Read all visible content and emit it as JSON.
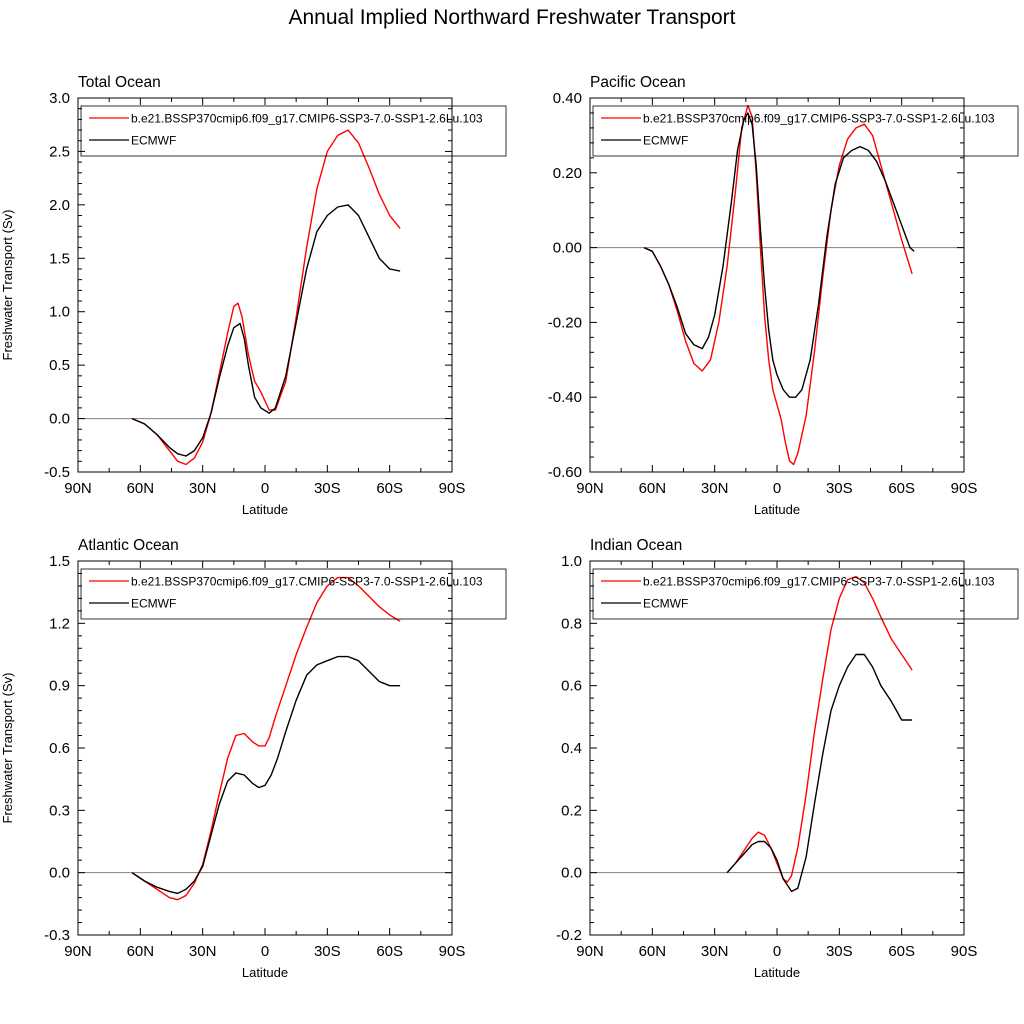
{
  "figure": {
    "title": "Annual Implied Northward Freshwater Transport"
  },
  "colors": {
    "model": "#ff0000",
    "obs": "#000000",
    "zero_line": "#808080"
  },
  "chart_data": [
    {
      "type": "line",
      "title": "Total Ocean",
      "xlabel": "Latitude",
      "ylabel": "Freshwater Transport (Sv)",
      "xlim": [
        -90,
        90
      ],
      "ylim": [
        -0.5,
        3.0
      ],
      "xticks": [
        -90,
        -60,
        -30,
        0,
        30,
        60,
        90
      ],
      "xtick_labels": [
        "90N",
        "60N",
        "30N",
        "0",
        "30S",
        "60S",
        "90S"
      ],
      "yticks": [
        -0.5,
        0.0,
        0.5,
        1.0,
        1.5,
        2.0,
        2.5,
        3.0
      ],
      "ytick_labels": [
        "-0.5",
        "0.0",
        "0.5",
        "1.0",
        "1.5",
        "2.0",
        "2.5",
        "3.0"
      ],
      "legend_position": "top",
      "series": [
        {
          "name": "b.e21.BSSP370cmip6.f09_g17.CMIP6-SSP3-7.0-SSP1-2.6Lu.103",
          "color": "#ff0000",
          "x": [
            -64,
            -58,
            -52,
            -46,
            -42,
            -38,
            -34,
            -30,
            -26,
            -22,
            -18,
            -15,
            -13,
            -11,
            -8,
            -5,
            -2,
            2,
            5,
            10,
            15,
            20,
            25,
            30,
            35,
            40,
            45,
            50,
            55,
            60,
            65
          ],
          "y": [
            0.0,
            -0.05,
            -0.15,
            -0.3,
            -0.4,
            -0.43,
            -0.37,
            -0.22,
            0.05,
            0.42,
            0.8,
            1.05,
            1.08,
            0.95,
            0.6,
            0.35,
            0.25,
            0.08,
            0.08,
            0.35,
            0.95,
            1.6,
            2.15,
            2.5,
            2.65,
            2.7,
            2.58,
            2.35,
            2.1,
            1.9,
            1.78
          ]
        },
        {
          "name": "ECMWF",
          "color": "#000000",
          "x": [
            -64,
            -58,
            -52,
            -46,
            -42,
            -38,
            -34,
            -30,
            -26,
            -22,
            -18,
            -15,
            -12,
            -10,
            -8,
            -5,
            -2,
            2,
            5,
            10,
            15,
            20,
            25,
            30,
            35,
            40,
            45,
            50,
            55,
            60,
            65
          ],
          "y": [
            0.0,
            -0.05,
            -0.15,
            -0.27,
            -0.33,
            -0.35,
            -0.3,
            -0.18,
            0.05,
            0.38,
            0.68,
            0.85,
            0.89,
            0.75,
            0.5,
            0.2,
            0.1,
            0.05,
            0.1,
            0.4,
            0.9,
            1.4,
            1.75,
            1.9,
            1.98,
            2.0,
            1.9,
            1.7,
            1.5,
            1.4,
            1.38
          ]
        }
      ]
    },
    {
      "type": "line",
      "title": "Pacific Ocean",
      "xlabel": "Latitude",
      "ylabel": "",
      "xlim": [
        -90,
        90
      ],
      "ylim": [
        -0.6,
        0.4
      ],
      "xticks": [
        -90,
        -60,
        -30,
        0,
        30,
        60,
        90
      ],
      "xtick_labels": [
        "90N",
        "60N",
        "30N",
        "0",
        "30S",
        "60S",
        "90S"
      ],
      "yticks": [
        -0.6,
        -0.4,
        -0.2,
        0.0,
        0.2,
        0.4
      ],
      "ytick_labels": [
        "-0.60",
        "-0.40",
        "-0.20",
        "0.00",
        "0.20",
        "0.40"
      ],
      "legend_position": "top",
      "series": [
        {
          "name": "b.e21.BSSP370cmip6.f09_g17.CMIP6-SSP3-7.0-SSP1-2.6Lu.103",
          "color": "#ff0000",
          "x": [
            -64,
            -60,
            -56,
            -52,
            -48,
            -44,
            -40,
            -36,
            -32,
            -28,
            -24,
            -20,
            -17,
            -14,
            -12,
            -10,
            -8,
            -6,
            -4,
            -2,
            0,
            2,
            4,
            6,
            8,
            10,
            14,
            18,
            22,
            26,
            30,
            34,
            38,
            42,
            46,
            50,
            55,
            60,
            65
          ],
          "y": [
            0.0,
            -0.01,
            -0.05,
            -0.1,
            -0.17,
            -0.25,
            -0.31,
            -0.33,
            -0.3,
            -0.2,
            -0.05,
            0.15,
            0.32,
            0.38,
            0.35,
            0.2,
            0.0,
            -0.18,
            -0.3,
            -0.38,
            -0.42,
            -0.46,
            -0.52,
            -0.57,
            -0.58,
            -0.55,
            -0.45,
            -0.28,
            -0.08,
            0.1,
            0.22,
            0.29,
            0.32,
            0.33,
            0.3,
            0.22,
            0.12,
            0.02,
            -0.07
          ]
        },
        {
          "name": "ECMWF",
          "color": "#000000",
          "x": [
            -64,
            -60,
            -56,
            -52,
            -48,
            -44,
            -40,
            -36,
            -33,
            -30,
            -26,
            -22,
            -19,
            -16,
            -14,
            -12,
            -10,
            -8,
            -6,
            -4,
            -2,
            0,
            3,
            6,
            9,
            12,
            16,
            20,
            24,
            28,
            32,
            36,
            40,
            44,
            48,
            52,
            56,
            60,
            64,
            66
          ],
          "y": [
            0.0,
            -0.01,
            -0.05,
            -0.1,
            -0.16,
            -0.23,
            -0.26,
            -0.27,
            -0.24,
            -0.18,
            -0.05,
            0.12,
            0.26,
            0.34,
            0.36,
            0.33,
            0.22,
            0.05,
            -0.1,
            -0.22,
            -0.3,
            -0.34,
            -0.38,
            -0.4,
            -0.4,
            -0.38,
            -0.3,
            -0.15,
            0.03,
            0.17,
            0.24,
            0.26,
            0.27,
            0.26,
            0.23,
            0.18,
            0.12,
            0.06,
            0.0,
            -0.01
          ]
        }
      ]
    },
    {
      "type": "line",
      "title": "Atlantic Ocean",
      "xlabel": "Latitude",
      "ylabel": "Freshwater Transport (Sv)",
      "xlim": [
        -90,
        90
      ],
      "ylim": [
        -0.3,
        1.5
      ],
      "xticks": [
        -90,
        -60,
        -30,
        0,
        30,
        60,
        90
      ],
      "xtick_labels": [
        "90N",
        "60N",
        "30N",
        "0",
        "30S",
        "60S",
        "90S"
      ],
      "yticks": [
        -0.3,
        0.0,
        0.3,
        0.6,
        0.9,
        1.2,
        1.5
      ],
      "ytick_labels": [
        "-0.3",
        "0.0",
        "0.3",
        "0.6",
        "0.9",
        "1.2",
        "1.5"
      ],
      "legend_position": "top",
      "series": [
        {
          "name": "b.e21.BSSP370cmip6.f09_g17.CMIP6-SSP3-7.0-SSP1-2.6Lu.103",
          "color": "#ff0000",
          "x": [
            -64,
            -58,
            -52,
            -46,
            -42,
            -38,
            -34,
            -30,
            -26,
            -22,
            -18,
            -14,
            -10,
            -6,
            -3,
            0,
            2,
            5,
            10,
            15,
            20,
            25,
            30,
            35,
            40,
            45,
            50,
            55,
            60,
            65
          ],
          "y": [
            0.0,
            -0.04,
            -0.08,
            -0.12,
            -0.13,
            -0.11,
            -0.05,
            0.04,
            0.2,
            0.38,
            0.55,
            0.66,
            0.67,
            0.63,
            0.61,
            0.61,
            0.65,
            0.75,
            0.9,
            1.05,
            1.18,
            1.3,
            1.38,
            1.42,
            1.42,
            1.38,
            1.33,
            1.28,
            1.24,
            1.21
          ]
        },
        {
          "name": "ECMWF",
          "color": "#000000",
          "x": [
            -64,
            -58,
            -52,
            -46,
            -42,
            -38,
            -34,
            -30,
            -26,
            -22,
            -18,
            -14,
            -10,
            -6,
            -3,
            0,
            3,
            6,
            10,
            15,
            20,
            25,
            30,
            35,
            40,
            45,
            50,
            55,
            60,
            65
          ],
          "y": [
            0.0,
            -0.04,
            -0.07,
            -0.09,
            -0.1,
            -0.08,
            -0.04,
            0.03,
            0.18,
            0.33,
            0.44,
            0.48,
            0.47,
            0.43,
            0.41,
            0.42,
            0.47,
            0.55,
            0.68,
            0.83,
            0.95,
            1.0,
            1.02,
            1.04,
            1.04,
            1.02,
            0.97,
            0.92,
            0.9,
            0.9
          ]
        }
      ]
    },
    {
      "type": "line",
      "title": "Indian Ocean",
      "xlabel": "Latitude",
      "ylabel": "",
      "xlim": [
        -90,
        90
      ],
      "ylim": [
        -0.2,
        1.0
      ],
      "xticks": [
        -90,
        -60,
        -30,
        0,
        30,
        60,
        90
      ],
      "xtick_labels": [
        "90N",
        "60N",
        "30N",
        "0",
        "30S",
        "60S",
        "90S"
      ],
      "yticks": [
        -0.2,
        0.0,
        0.2,
        0.4,
        0.6,
        0.8,
        1.0
      ],
      "ytick_labels": [
        "-0.2",
        "0.0",
        "0.2",
        "0.4",
        "0.6",
        "0.8",
        "1.0"
      ],
      "legend_position": "top",
      "series": [
        {
          "name": "b.e21.BSSP370cmip6.f09_g17.CMIP6-SSP3-7.0-SSP1-2.6Lu.103",
          "color": "#ff0000",
          "x": [
            -24,
            -20,
            -16,
            -12,
            -9,
            -6,
            -3,
            0,
            3,
            5,
            7,
            10,
            14,
            18,
            22,
            26,
            30,
            34,
            38,
            42,
            46,
            50,
            55,
            60,
            65
          ],
          "y": [
            0.0,
            0.03,
            0.07,
            0.11,
            0.13,
            0.12,
            0.08,
            0.03,
            -0.02,
            -0.03,
            -0.01,
            0.08,
            0.25,
            0.45,
            0.62,
            0.78,
            0.88,
            0.94,
            0.95,
            0.93,
            0.88,
            0.82,
            0.75,
            0.7,
            0.65
          ]
        },
        {
          "name": "ECMWF",
          "color": "#000000",
          "x": [
            -24,
            -20,
            -16,
            -12,
            -9,
            -6,
            -3,
            0,
            3,
            5,
            7,
            10,
            14,
            18,
            22,
            26,
            30,
            34,
            38,
            42,
            46,
            50,
            55,
            60,
            65
          ],
          "y": [
            0.0,
            0.03,
            0.06,
            0.09,
            0.1,
            0.1,
            0.08,
            0.04,
            -0.02,
            -0.04,
            -0.06,
            -0.05,
            0.05,
            0.22,
            0.38,
            0.52,
            0.6,
            0.66,
            0.7,
            0.7,
            0.66,
            0.6,
            0.55,
            0.49,
            0.49
          ]
        }
      ]
    }
  ]
}
